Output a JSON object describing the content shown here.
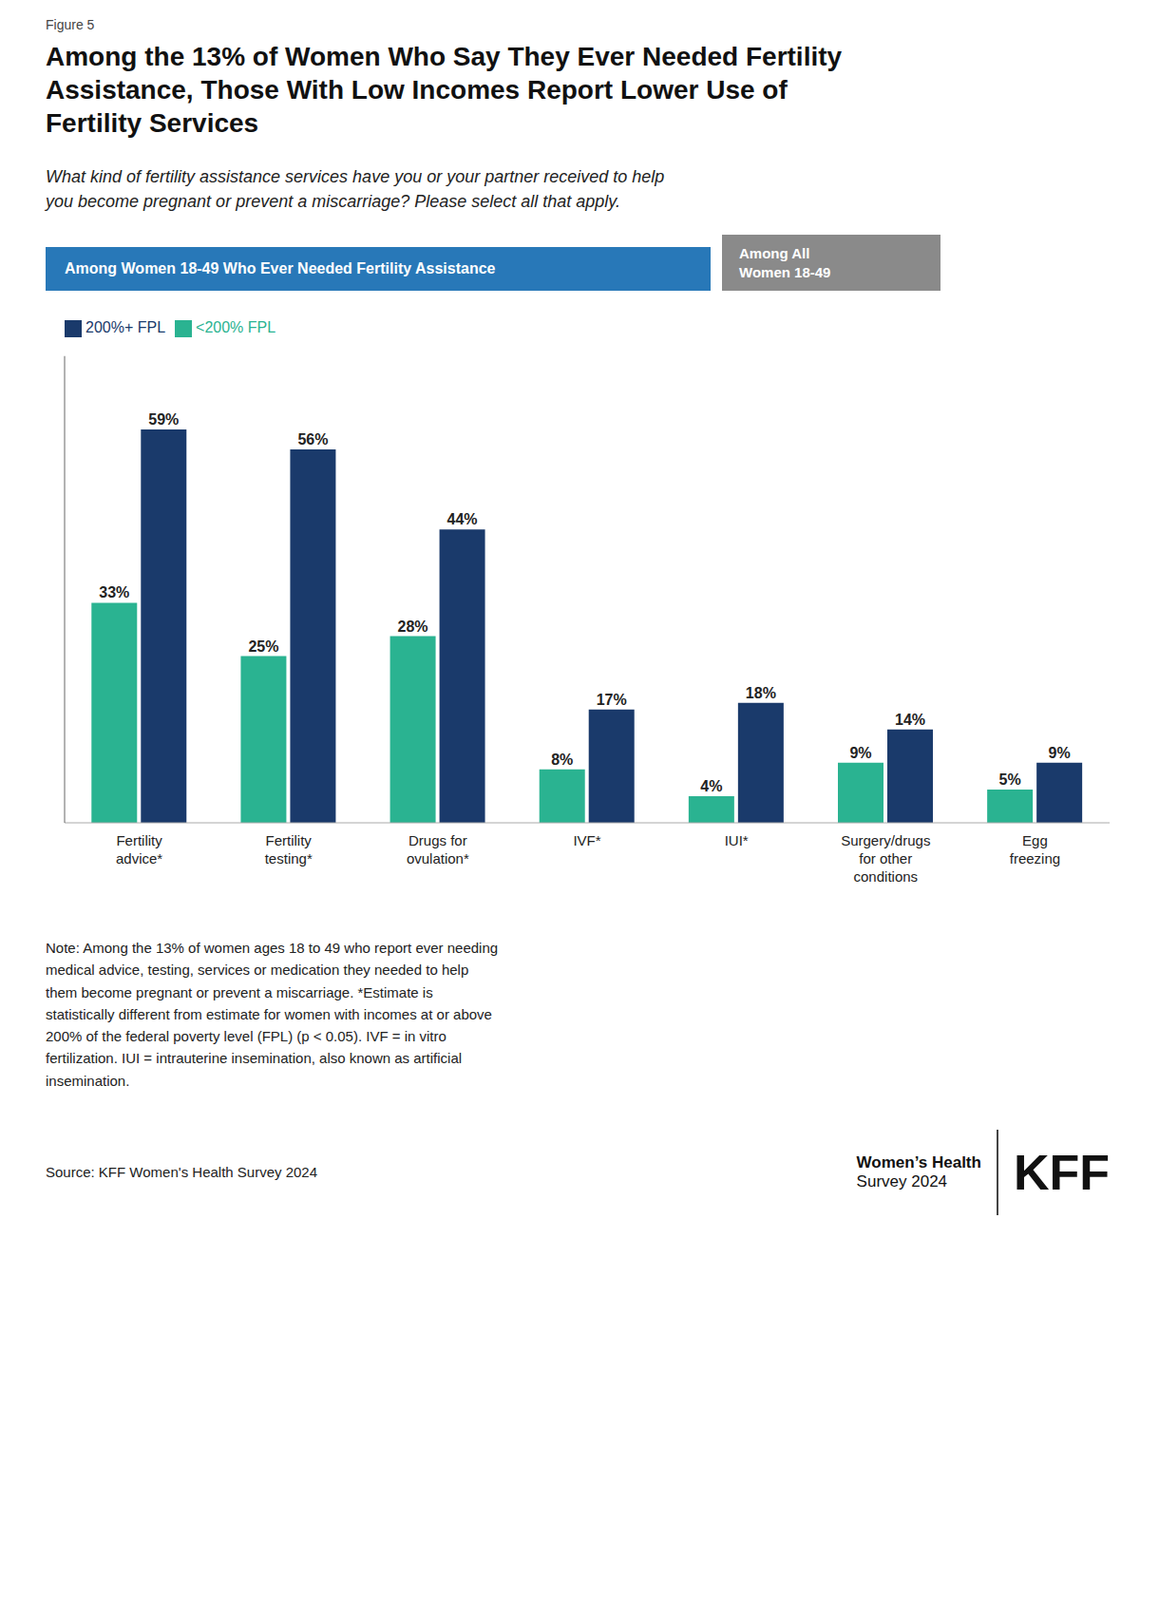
{
  "chart_data": {
    "type": "bar",
    "title": "Among the 13% of Women Who Say They Ever Needed Fertility\nAssistance, Those With Low Incomes Report Lower Use of\nFertility Services",
    "subtitle": "What kind of fertility assistance services have you or your partner received to help\nyou become pregnant or prevent a miscarriage? Please select all that apply.",
    "annotations": [
      "Figure 5",
      "Among Women 18-49 Who Ever Needed Fertility Assistance",
      "Among All\nWomen 18-49",
      "Note: Among the 13% of women ages 18 to 49 who report ever needing\nmedical advice, testing, services or medication they needed to help\nthem become pregnant or prevent a miscarriage. *Estimate is\nstatistically different from estimate for women with incomes at or above\n200% of the federal poverty level (FPL) (p < 0.05). IVF = in vitro\nfertilization. IUI = intrauterine insemination, also known as artificial\ninsemination.",
      "Source: KFF Women's Health Survey 2024",
      "Women’s Health",
      "Survey 2024",
      "KFF"
    ],
    "categories": [
      "Fertility\nadvice*",
      "Fertility\ntesting*",
      "Drugs for\novulation*",
      "IVF*",
      "IUI*",
      "Surgery/drugs\nfor other\nconditions",
      "Egg\nfreezing"
    ],
    "series": [
      {
        "name": "<200% FPL",
        "color": "#2ab391",
        "values": [
          33,
          25,
          28,
          8,
          4,
          9,
          5
        ],
        "value_labels": [
          "33%",
          "25%",
          "28%",
          "8%",
          "4%",
          "9%",
          "5%"
        ]
      },
      {
        "name": "200%+ FPL",
        "color": "#1a3a6b",
        "values": [
          59,
          56,
          44,
          17,
          18,
          14,
          9
        ],
        "value_labels": [
          "59%",
          "56%",
          "44%",
          "17%",
          "18%",
          "14%",
          "9%"
        ]
      }
    ],
    "ylim": [
      0,
      70
    ],
    "grid": false,
    "legend": "top-left",
    "data_labels": true,
    "tick_labels": "x"
  }
}
